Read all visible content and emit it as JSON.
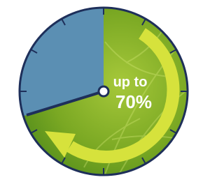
{
  "label": {
    "line1": "up to",
    "line2": "70%"
  }
}
